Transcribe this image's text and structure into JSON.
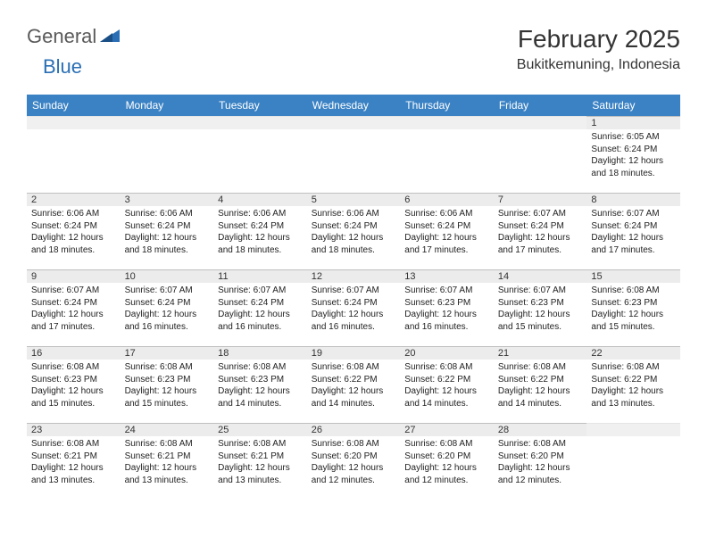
{
  "brand": {
    "part1": "General",
    "part2": "Blue"
  },
  "title": "February 2025",
  "location": "Bukitkemuning, Indonesia",
  "colors": {
    "header_bar": "#3b82c4",
    "daynum_bg": "#ececec",
    "daynum_border": "#bfbfbf",
    "brand_blue": "#2a6fb5",
    "text": "#333333",
    "background": "#ffffff"
  },
  "weekdays": [
    "Sunday",
    "Monday",
    "Tuesday",
    "Wednesday",
    "Thursday",
    "Friday",
    "Saturday"
  ],
  "weeks": [
    [
      null,
      null,
      null,
      null,
      null,
      null,
      {
        "n": "1",
        "sr": "6:05 AM",
        "ss": "6:24 PM",
        "dh": "12",
        "dm": "18"
      }
    ],
    [
      {
        "n": "2",
        "sr": "6:06 AM",
        "ss": "6:24 PM",
        "dh": "12",
        "dm": "18"
      },
      {
        "n": "3",
        "sr": "6:06 AM",
        "ss": "6:24 PM",
        "dh": "12",
        "dm": "18"
      },
      {
        "n": "4",
        "sr": "6:06 AM",
        "ss": "6:24 PM",
        "dh": "12",
        "dm": "18"
      },
      {
        "n": "5",
        "sr": "6:06 AM",
        "ss": "6:24 PM",
        "dh": "12",
        "dm": "18"
      },
      {
        "n": "6",
        "sr": "6:06 AM",
        "ss": "6:24 PM",
        "dh": "12",
        "dm": "17"
      },
      {
        "n": "7",
        "sr": "6:07 AM",
        "ss": "6:24 PM",
        "dh": "12",
        "dm": "17"
      },
      {
        "n": "8",
        "sr": "6:07 AM",
        "ss": "6:24 PM",
        "dh": "12",
        "dm": "17"
      }
    ],
    [
      {
        "n": "9",
        "sr": "6:07 AM",
        "ss": "6:24 PM",
        "dh": "12",
        "dm": "17"
      },
      {
        "n": "10",
        "sr": "6:07 AM",
        "ss": "6:24 PM",
        "dh": "12",
        "dm": "16"
      },
      {
        "n": "11",
        "sr": "6:07 AM",
        "ss": "6:24 PM",
        "dh": "12",
        "dm": "16"
      },
      {
        "n": "12",
        "sr": "6:07 AM",
        "ss": "6:24 PM",
        "dh": "12",
        "dm": "16"
      },
      {
        "n": "13",
        "sr": "6:07 AM",
        "ss": "6:23 PM",
        "dh": "12",
        "dm": "16"
      },
      {
        "n": "14",
        "sr": "6:07 AM",
        "ss": "6:23 PM",
        "dh": "12",
        "dm": "15"
      },
      {
        "n": "15",
        "sr": "6:08 AM",
        "ss": "6:23 PM",
        "dh": "12",
        "dm": "15"
      }
    ],
    [
      {
        "n": "16",
        "sr": "6:08 AM",
        "ss": "6:23 PM",
        "dh": "12",
        "dm": "15"
      },
      {
        "n": "17",
        "sr": "6:08 AM",
        "ss": "6:23 PM",
        "dh": "12",
        "dm": "15"
      },
      {
        "n": "18",
        "sr": "6:08 AM",
        "ss": "6:23 PM",
        "dh": "12",
        "dm": "14"
      },
      {
        "n": "19",
        "sr": "6:08 AM",
        "ss": "6:22 PM",
        "dh": "12",
        "dm": "14"
      },
      {
        "n": "20",
        "sr": "6:08 AM",
        "ss": "6:22 PM",
        "dh": "12",
        "dm": "14"
      },
      {
        "n": "21",
        "sr": "6:08 AM",
        "ss": "6:22 PM",
        "dh": "12",
        "dm": "14"
      },
      {
        "n": "22",
        "sr": "6:08 AM",
        "ss": "6:22 PM",
        "dh": "12",
        "dm": "13"
      }
    ],
    [
      {
        "n": "23",
        "sr": "6:08 AM",
        "ss": "6:21 PM",
        "dh": "12",
        "dm": "13"
      },
      {
        "n": "24",
        "sr": "6:08 AM",
        "ss": "6:21 PM",
        "dh": "12",
        "dm": "13"
      },
      {
        "n": "25",
        "sr": "6:08 AM",
        "ss": "6:21 PM",
        "dh": "12",
        "dm": "13"
      },
      {
        "n": "26",
        "sr": "6:08 AM",
        "ss": "6:20 PM",
        "dh": "12",
        "dm": "12"
      },
      {
        "n": "27",
        "sr": "6:08 AM",
        "ss": "6:20 PM",
        "dh": "12",
        "dm": "12"
      },
      {
        "n": "28",
        "sr": "6:08 AM",
        "ss": "6:20 PM",
        "dh": "12",
        "dm": "12"
      },
      null
    ]
  ],
  "labels": {
    "sunrise": "Sunrise:",
    "sunset": "Sunset:",
    "daylight1": "Daylight:",
    "hours_word": "hours",
    "and_word": "and",
    "minutes_word": "minutes."
  }
}
